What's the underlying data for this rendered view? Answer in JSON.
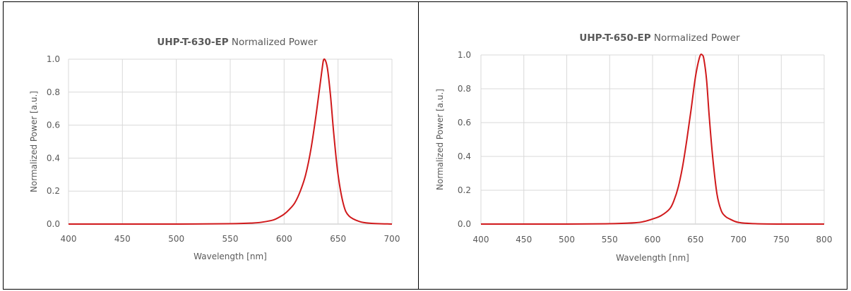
{
  "chart_data": [
    {
      "type": "line",
      "title_bold": "UHP-T-630-EP",
      "title_rest": "Normalized Power",
      "xlabel": "Wavelength [nm]",
      "ylabel": "Normalized Power [a.u.]",
      "xlim": [
        400,
        700
      ],
      "ylim": [
        0,
        1.0
      ],
      "xticks": [
        400,
        450,
        500,
        550,
        600,
        650,
        700
      ],
      "yticks": [
        "0.0",
        "0.2",
        "0.4",
        "0.6",
        "0.8",
        "1.0"
      ],
      "grid": true,
      "line_color": "#d0191b",
      "x": [
        400,
        450,
        500,
        550,
        570,
        580,
        590,
        595,
        600,
        605,
        610,
        615,
        620,
        625,
        630,
        635,
        637,
        640,
        643,
        646,
        650,
        655,
        660,
        670,
        680,
        700
      ],
      "y": [
        0.0,
        0.0,
        0.0,
        0.002,
        0.006,
        0.012,
        0.025,
        0.04,
        0.06,
        0.09,
        0.13,
        0.2,
        0.3,
        0.46,
        0.68,
        0.93,
        1.0,
        0.95,
        0.78,
        0.55,
        0.3,
        0.12,
        0.05,
        0.015,
        0.005,
        0.0
      ]
    },
    {
      "type": "line",
      "title_bold": "UHP-T-650-EP",
      "title_rest": "Normalized Power",
      "xlabel": "Wavelength [nm]",
      "ylabel": "Normalized Power [a.u.]",
      "xlim": [
        400,
        800
      ],
      "ylim": [
        0,
        1.0
      ],
      "xticks": [
        400,
        450,
        500,
        550,
        600,
        650,
        700,
        750,
        800
      ],
      "yticks": [
        "0.0",
        "0.2",
        "0.4",
        "0.6",
        "0.8",
        "1.0"
      ],
      "grid": true,
      "line_color": "#d0191b",
      "x": [
        400,
        500,
        550,
        580,
        590,
        600,
        610,
        620,
        625,
        630,
        635,
        640,
        645,
        650,
        655,
        658,
        660,
        663,
        666,
        670,
        675,
        680,
        685,
        690,
        700,
        720,
        750,
        800
      ],
      "y": [
        0.0,
        0.0,
        0.002,
        0.008,
        0.015,
        0.03,
        0.05,
        0.09,
        0.14,
        0.22,
        0.34,
        0.5,
        0.68,
        0.87,
        0.99,
        1.0,
        0.97,
        0.85,
        0.64,
        0.4,
        0.18,
        0.08,
        0.045,
        0.03,
        0.01,
        0.002,
        0.0,
        0.0
      ]
    }
  ]
}
